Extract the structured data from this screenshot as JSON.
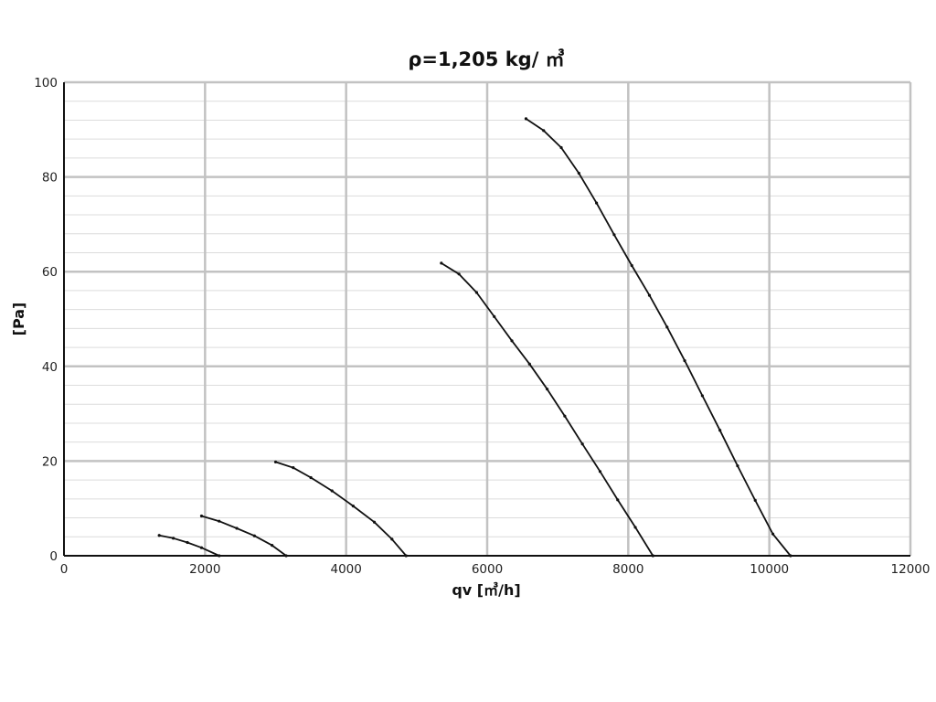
{
  "chart_data": {
    "type": "line",
    "title": "ρ=1,205 kg/ ㎥",
    "xlabel": "qv [㎥/h]",
    "ylabel": "[Pa]",
    "xlim": [
      0,
      12000
    ],
    "ylim": [
      0,
      100
    ],
    "x_ticks": [
      "0",
      "2000",
      "4000",
      "6000",
      "8000",
      "10000",
      "12000"
    ],
    "y_ticks": [
      "0",
      "20",
      "40",
      "60",
      "80",
      "100"
    ],
    "grid": true,
    "legend": "none",
    "series": [
      {
        "points": [
          [
            1350,
            4.3
          ],
          [
            1550,
            3.7
          ],
          [
            1750,
            2.8
          ],
          [
            1950,
            1.7
          ],
          [
            2200,
            0
          ]
        ]
      },
      {
        "points": [
          [
            1950,
            8.4
          ],
          [
            2200,
            7.3
          ],
          [
            2450,
            5.8
          ],
          [
            2700,
            4.2
          ],
          [
            2950,
            2.2
          ],
          [
            3150,
            0
          ]
        ]
      },
      {
        "points": [
          [
            3000,
            19.8
          ],
          [
            3250,
            18.6
          ],
          [
            3500,
            16.5
          ],
          [
            3800,
            13.7
          ],
          [
            4100,
            10.5
          ],
          [
            4400,
            7.1
          ],
          [
            4650,
            3.5
          ],
          [
            4850,
            0
          ]
        ]
      },
      {
        "points": [
          [
            5350,
            61.8
          ],
          [
            5600,
            59.5
          ],
          [
            5850,
            55.6
          ],
          [
            6100,
            50.5
          ],
          [
            6350,
            45.4
          ],
          [
            6600,
            40.5
          ],
          [
            6850,
            35.2
          ],
          [
            7100,
            29.5
          ],
          [
            7350,
            23.6
          ],
          [
            7600,
            17.8
          ],
          [
            7850,
            11.8
          ],
          [
            8100,
            6.0
          ],
          [
            8350,
            0
          ]
        ]
      },
      {
        "points": [
          [
            6550,
            92.3
          ],
          [
            6800,
            89.8
          ],
          [
            7050,
            86.2
          ],
          [
            7300,
            80.8
          ],
          [
            7550,
            74.5
          ],
          [
            7800,
            67.8
          ],
          [
            8050,
            61.3
          ],
          [
            8300,
            55.0
          ],
          [
            8550,
            48.3
          ],
          [
            8800,
            41.2
          ],
          [
            9050,
            33.8
          ],
          [
            9300,
            26.5
          ],
          [
            9550,
            19.0
          ],
          [
            9800,
            11.7
          ],
          [
            10050,
            4.6
          ],
          [
            10300,
            0
          ]
        ]
      }
    ]
  }
}
